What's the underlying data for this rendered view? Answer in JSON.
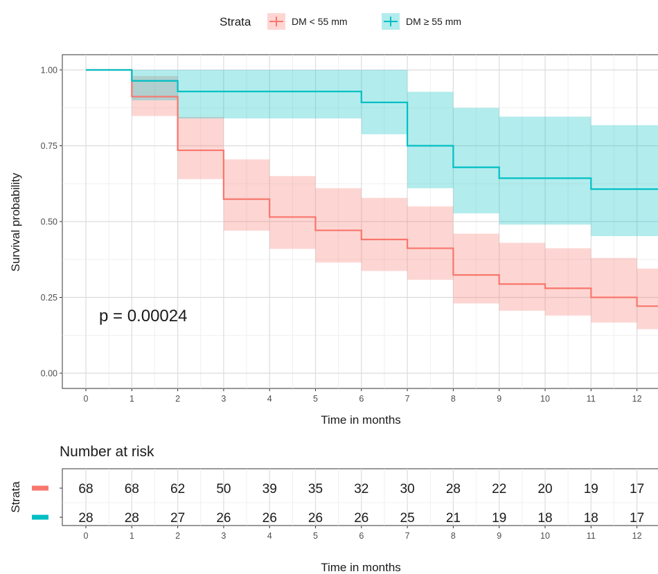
{
  "legend": {
    "title": "Strata",
    "items": [
      {
        "label": "DM < 55 mm",
        "color": "#F8766D"
      },
      {
        "label": "DM ≥ 55 mm",
        "color": "#00BFC4"
      }
    ]
  },
  "annotation": "p = 0.00024",
  "risk_table": {
    "title": "Number at risk",
    "y_label": "Strata",
    "x_label": "Time in months",
    "times": [
      0,
      1,
      2,
      3,
      4,
      5,
      6,
      7,
      8,
      9,
      10,
      11,
      12
    ],
    "rows": [
      {
        "color": "#F8766D",
        "counts": [
          68,
          68,
          62,
          50,
          39,
          35,
          32,
          30,
          28,
          22,
          20,
          19,
          17
        ]
      },
      {
        "color": "#00BFC4",
        "counts": [
          28,
          28,
          27,
          26,
          26,
          26,
          26,
          25,
          21,
          19,
          18,
          18,
          17
        ]
      }
    ]
  },
  "chart_data": {
    "type": "line",
    "subtype": "kaplan-meier step",
    "xlabel": "Time in months",
    "ylabel": "Survival probability",
    "xlim": [
      0,
      12
    ],
    "ylim": [
      0,
      1
    ],
    "x_ticks": [
      0,
      1,
      2,
      3,
      4,
      5,
      6,
      7,
      8,
      9,
      10,
      11,
      12
    ],
    "y_ticks": [
      0.0,
      0.25,
      0.5,
      0.75,
      1.0
    ],
    "y_tick_labels": [
      "0.00",
      "0.25",
      "0.50",
      "0.75",
      "1.00"
    ],
    "grid": true,
    "legend_position": "top",
    "series": [
      {
        "name": "DM < 55 mm",
        "color": "#F8766D",
        "x": [
          0,
          1,
          2,
          3,
          4,
          5,
          6,
          7,
          8,
          9,
          10,
          11,
          12
        ],
        "y": [
          1.0,
          0.912,
          0.735,
          0.574,
          0.515,
          0.471,
          0.441,
          0.412,
          0.324,
          0.294,
          0.28,
          0.25,
          0.221
        ],
        "lower": [
          1.0,
          0.848,
          0.64,
          0.47,
          0.41,
          0.365,
          0.337,
          0.308,
          0.23,
          0.206,
          0.19,
          0.167,
          0.145
        ],
        "upper": [
          1.0,
          0.98,
          0.845,
          0.705,
          0.65,
          0.61,
          0.578,
          0.55,
          0.46,
          0.43,
          0.412,
          0.38,
          0.345
        ]
      },
      {
        "name": "DM ≥ 55 mm",
        "color": "#00BFC4",
        "x": [
          0,
          1,
          2,
          6,
          7,
          8,
          9,
          11
        ],
        "y": [
          1.0,
          0.964,
          0.929,
          0.893,
          0.75,
          0.679,
          0.643,
          0.607
        ],
        "lower": [
          1.0,
          0.9,
          0.84,
          0.788,
          0.61,
          0.527,
          0.49,
          0.452
        ],
        "upper": [
          1.0,
          1.0,
          1.0,
          1.0,
          0.928,
          0.875,
          0.846,
          0.818
        ]
      }
    ]
  }
}
